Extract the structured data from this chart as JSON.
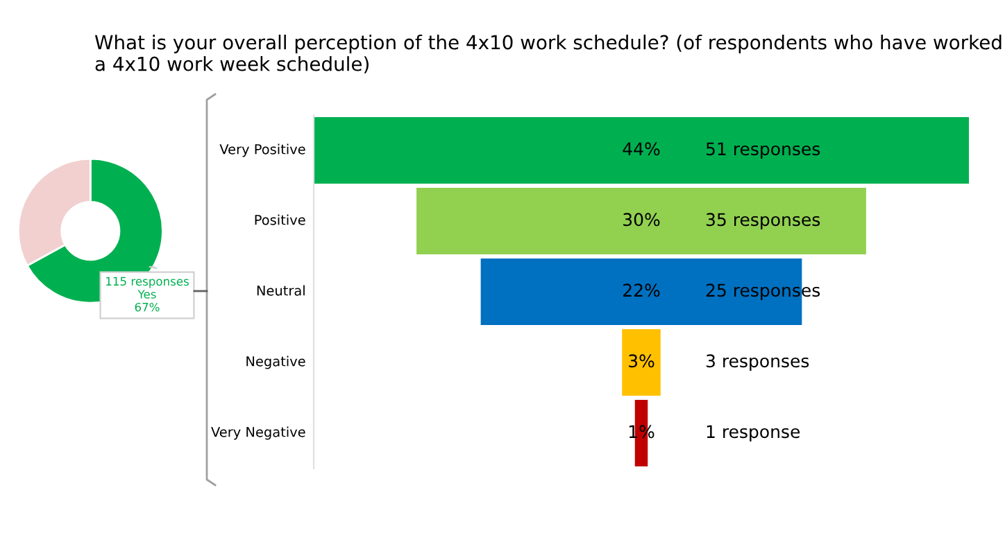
{
  "chart_data": [
    {
      "type": "donut",
      "categories": [
        null,
        null
      ],
      "values": [
        67,
        33
      ],
      "colors": [
        "#00b050",
        "#f2d0d0"
      ],
      "value_labels": [
        "115 responses\nYes\n67%",
        null
      ]
    },
    {
      "type": "other",
      "title": "What is your overall perception of the 4x10 work schedule? (of respondents who have worked a 4x10 work week schedule)",
      "categories": [
        "Very Positive",
        "Positive",
        "Neutral",
        "Negative",
        "Very Negative"
      ],
      "values": [
        51,
        35,
        25,
        3,
        1
      ],
      "colors": [
        "#00b050",
        "#92d050",
        "#0070c0",
        "#ffc000",
        "#c00000"
      ],
      "value_labels": [
        "51 responses",
        "35 responses",
        "25 responses",
        "3 responses",
        "1 response"
      ],
      "annotations": [
        {
          "text": "44%",
          "y": "Very Positive"
        },
        {
          "text": "30%",
          "y": "Positive"
        },
        {
          "text": "22%",
          "y": "Neutral"
        },
        {
          "text": "3%",
          "y": "Negative"
        },
        {
          "text": "1%",
          "y": "Very Negative"
        }
      ]
    }
  ]
}
